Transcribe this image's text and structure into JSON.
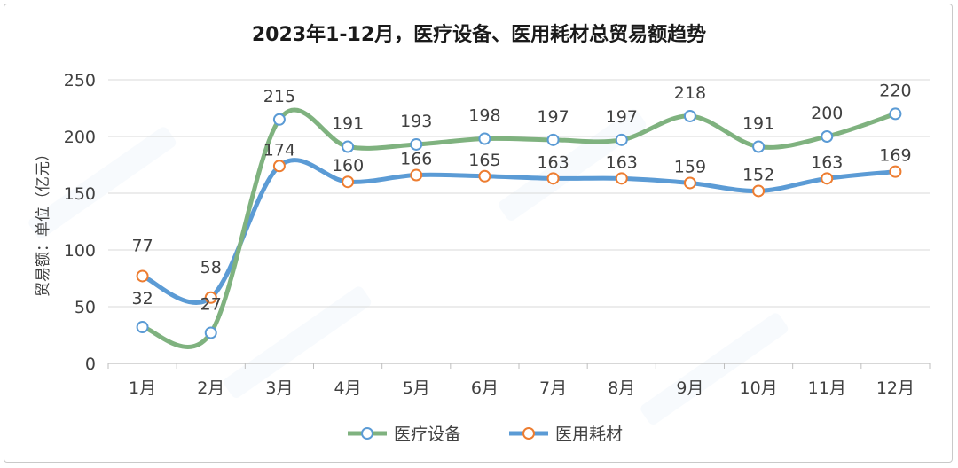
{
  "chart_data": {
    "type": "line",
    "title": "2023年1-12月，医疗设备、医用耗材总贸易额趋势",
    "ylabel": "贸易额：单位（亿元）",
    "xlabel": "",
    "categories": [
      "1月",
      "2月",
      "3月",
      "4月",
      "5月",
      "6月",
      "7月",
      "8月",
      "9月",
      "10月",
      "11月",
      "12月"
    ],
    "ylim": [
      0,
      250
    ],
    "yticks": [
      0,
      50,
      100,
      150,
      200,
      250
    ],
    "grid": "horizontal",
    "legend_position": "bottom",
    "series": [
      {
        "name": "医疗设备",
        "color": "#7fb27f",
        "values": [
          32,
          27,
          215,
          191,
          193,
          198,
          197,
          197,
          218,
          191,
          200,
          220
        ]
      },
      {
        "name": "医用耗材",
        "color": "#5b9bd5",
        "marker_color": "#ed7d31",
        "values": [
          77,
          58,
          174,
          160,
          166,
          165,
          163,
          163,
          159,
          152,
          163,
          169
        ]
      }
    ]
  }
}
